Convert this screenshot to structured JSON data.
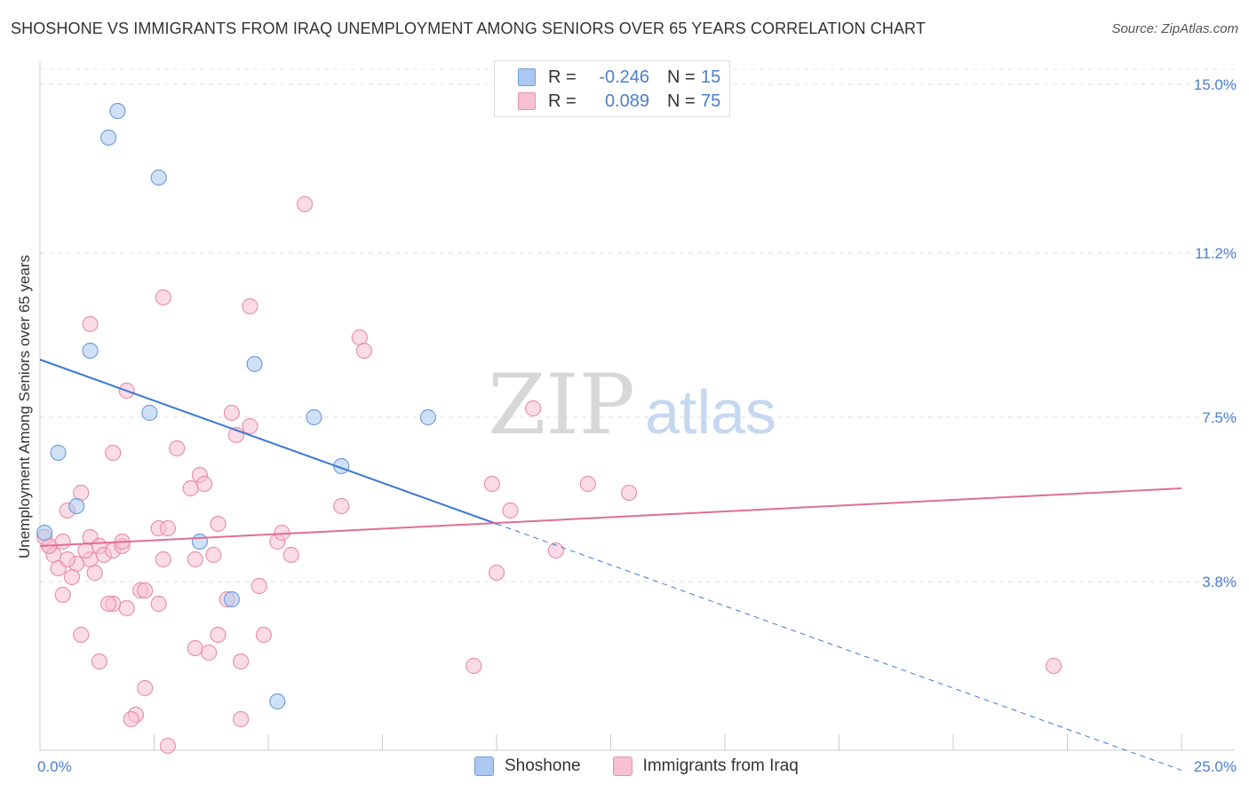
{
  "title": "SHOSHONE VS IMMIGRANTS FROM IRAQ UNEMPLOYMENT AMONG SENIORS OVER 65 YEARS CORRELATION CHART",
  "source": "Source: ZipAtlas.com",
  "watermark": {
    "zip": "ZIP",
    "atlas": "atlas"
  },
  "legend": {
    "rows": [
      {
        "r_label": "R =",
        "r_value": "-0.246",
        "n_label": "N =",
        "n_value": "15",
        "color": "#aac8f0",
        "border": "#6f9fdc"
      },
      {
        "r_label": "R =",
        "r_value": "0.089",
        "n_label": "N =",
        "n_value": "75",
        "color": "#f7c0d2",
        "border": "#e890ad"
      }
    ]
  },
  "bottom_legend": {
    "shoshone": "Shoshone",
    "iraq": "Immigrants from Iraq"
  },
  "chart_data": {
    "type": "scatter",
    "title": "SHOSHONE VS IMMIGRANTS FROM IRAQ UNEMPLOYMENT AMONG SENIORS OVER 65 YEARS CORRELATION CHART",
    "xlabel": "",
    "ylabel": "Unemployment Among Seniors over 65 years",
    "xlim": [
      0,
      25
    ],
    "ylim": [
      0,
      15.5
    ],
    "x_tick_labels": [
      "0.0%",
      "25.0%"
    ],
    "y_ticks": [
      3.8,
      7.5,
      11.2,
      15.0
    ],
    "y_tick_labels": [
      "3.8%",
      "7.5%",
      "11.2%",
      "15.0%"
    ],
    "series": [
      {
        "name": "Shoshone",
        "color": "#aac8f0",
        "stroke": "#6f9fdc",
        "trend": {
          "x0": 0,
          "y0": 8.8,
          "x1": 10,
          "y1": 5.1,
          "dash_to_x": 25,
          "line_color": "#3a78d4"
        },
        "points": [
          [
            1.7,
            14.4
          ],
          [
            1.5,
            13.8
          ],
          [
            2.6,
            12.9
          ],
          [
            1.1,
            9.0
          ],
          [
            4.7,
            8.7
          ],
          [
            2.4,
            7.6
          ],
          [
            6.0,
            7.5
          ],
          [
            8.5,
            7.5
          ],
          [
            0.4,
            6.7
          ],
          [
            6.6,
            6.4
          ],
          [
            0.8,
            5.5
          ],
          [
            3.5,
            4.7
          ],
          [
            4.2,
            3.4
          ],
          [
            5.2,
            1.1
          ],
          [
            0.1,
            4.9
          ]
        ]
      },
      {
        "name": "Immigrants from Iraq",
        "color": "#f7c0d2",
        "stroke": "#e890ad",
        "trend": {
          "x0": 0,
          "y0": 4.6,
          "x1": 25,
          "y1": 5.9,
          "line_color": "#e06d96"
        },
        "points": [
          [
            5.8,
            12.3
          ],
          [
            2.7,
            10.2
          ],
          [
            4.6,
            10.0
          ],
          [
            1.1,
            9.6
          ],
          [
            7.0,
            9.3
          ],
          [
            7.1,
            9.0
          ],
          [
            1.9,
            8.1
          ],
          [
            4.2,
            7.6
          ],
          [
            4.6,
            7.3
          ],
          [
            4.3,
            7.1
          ],
          [
            10.8,
            7.7
          ],
          [
            1.6,
            6.7
          ],
          [
            3.0,
            6.8
          ],
          [
            3.5,
            6.2
          ],
          [
            3.3,
            5.9
          ],
          [
            3.6,
            6.0
          ],
          [
            0.9,
            5.8
          ],
          [
            9.9,
            6.0
          ],
          [
            12.0,
            6.0
          ],
          [
            12.9,
            5.8
          ],
          [
            0.6,
            5.4
          ],
          [
            6.6,
            5.5
          ],
          [
            10.3,
            5.4
          ],
          [
            2.6,
            5.0
          ],
          [
            3.9,
            5.1
          ],
          [
            0.1,
            4.8
          ],
          [
            0.2,
            4.6
          ],
          [
            0.3,
            4.4
          ],
          [
            0.5,
            4.7
          ],
          [
            1.1,
            4.8
          ],
          [
            1.3,
            4.6
          ],
          [
            1.4,
            4.4
          ],
          [
            1.6,
            4.5
          ],
          [
            0.8,
            4.2
          ],
          [
            0.4,
            4.1
          ],
          [
            1.2,
            4.0
          ],
          [
            2.7,
            4.3
          ],
          [
            3.4,
            4.3
          ],
          [
            5.2,
            4.7
          ],
          [
            5.5,
            4.4
          ],
          [
            0.7,
            3.9
          ],
          [
            0.5,
            3.5
          ],
          [
            1.1,
            4.3
          ],
          [
            2.2,
            3.6
          ],
          [
            2.3,
            3.6
          ],
          [
            1.6,
            3.3
          ],
          [
            1.9,
            3.2
          ],
          [
            2.6,
            3.3
          ],
          [
            4.1,
            3.4
          ],
          [
            4.8,
            3.7
          ],
          [
            11.3,
            4.5
          ],
          [
            10.0,
            4.0
          ],
          [
            0.9,
            2.6
          ],
          [
            1.3,
            2.0
          ],
          [
            3.4,
            2.3
          ],
          [
            3.7,
            2.2
          ],
          [
            3.9,
            2.6
          ],
          [
            4.4,
            2.0
          ],
          [
            4.9,
            2.6
          ],
          [
            2.3,
            1.4
          ],
          [
            2.1,
            0.8
          ],
          [
            2.0,
            0.7
          ],
          [
            4.4,
            0.7
          ],
          [
            2.8,
            0.1
          ],
          [
            9.5,
            1.9
          ],
          [
            22.2,
            1.9
          ],
          [
            1.8,
            4.6
          ],
          [
            0.2,
            4.6
          ],
          [
            1.5,
            3.3
          ],
          [
            0.6,
            4.3
          ],
          [
            1.0,
            4.5
          ],
          [
            2.8,
            5.0
          ],
          [
            5.3,
            4.9
          ],
          [
            3.8,
            4.4
          ],
          [
            1.8,
            4.7
          ]
        ]
      }
    ],
    "legend_position": "top-center"
  }
}
